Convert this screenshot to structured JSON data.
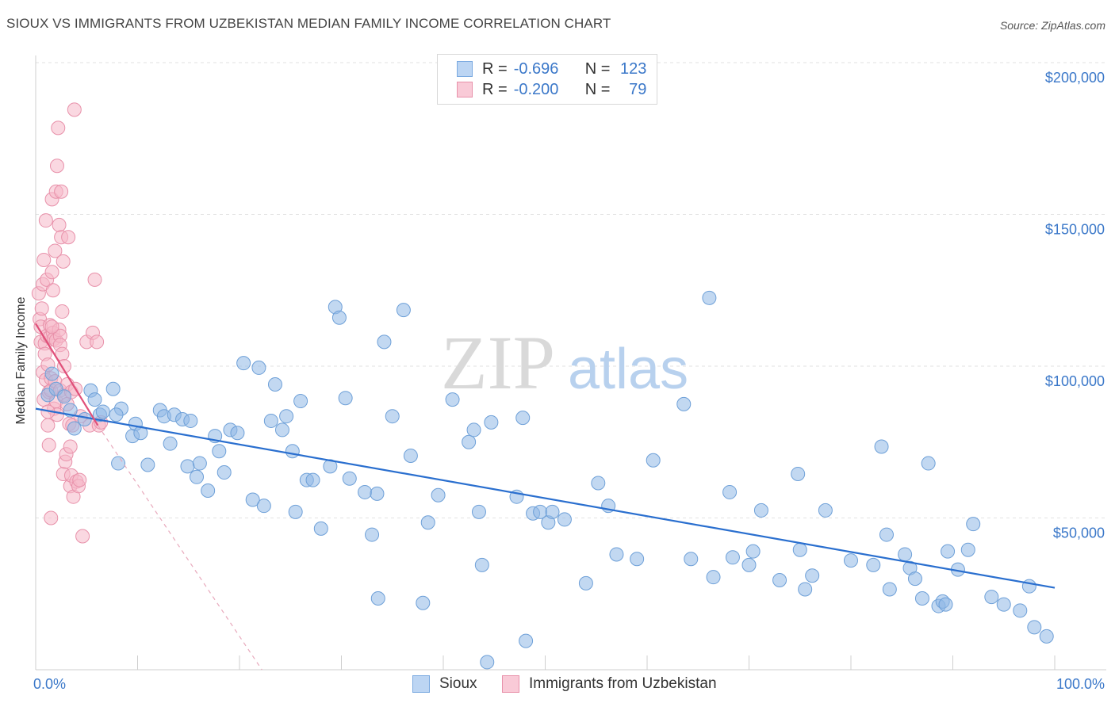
{
  "chart_data": {
    "type": "scatter",
    "title": "SIOUX VS IMMIGRANTS FROM UZBEKISTAN MEDIAN FAMILY INCOME CORRELATION CHART",
    "source": "Source: ZipAtlas.com",
    "watermark": {
      "zip": "ZIP",
      "atlas": "atlas"
    },
    "ylabel": "Median Family Income",
    "xlabel": "",
    "xlim": [
      0,
      100
    ],
    "ylim": [
      0,
      210000
    ],
    "x_tick_labels": {
      "left": "0.0%",
      "right": "100.0%"
    },
    "y_ticks": [
      {
        "value": 200000,
        "label": "$200,000"
      },
      {
        "value": 150000,
        "label": "$150,000"
      },
      {
        "value": 100000,
        "label": "$100,000"
      },
      {
        "value": 50000,
        "label": "$50,000"
      }
    ],
    "legend": {
      "rows": [
        {
          "r_label": "R =",
          "r_value": "-0.696",
          "n_label": "N =",
          "n_value": "123"
        },
        {
          "r_label": "R =",
          "r_value": "-0.200",
          "n_label": "N =",
          "n_value": "79"
        }
      ]
    },
    "series": [
      {
        "name": "Sioux",
        "color": "#8fb8e6",
        "stroke": "#6ea0d8",
        "line_color": "#2a6fcf",
        "trend": {
          "x": [
            0,
            100
          ],
          "y": [
            86000,
            27000
          ]
        },
        "points": [
          [
            1.2,
            90500
          ],
          [
            1.6,
            97500
          ],
          [
            2,
            92500
          ],
          [
            2.8,
            90000
          ],
          [
            3.4,
            85500
          ],
          [
            3.8,
            79500
          ],
          [
            4.8,
            82500
          ],
          [
            5.4,
            92000
          ],
          [
            5.8,
            89000
          ],
          [
            6.3,
            84000
          ],
          [
            6.6,
            85000
          ],
          [
            7.6,
            92500
          ],
          [
            8.1,
            68000
          ],
          [
            8.4,
            86000
          ],
          [
            9.5,
            77000
          ],
          [
            9.8,
            81000
          ],
          [
            10.3,
            78000
          ],
          [
            11,
            67500
          ],
          [
            12.2,
            85500
          ],
          [
            12.6,
            83500
          ],
          [
            13.2,
            74500
          ],
          [
            13.6,
            84000
          ],
          [
            14.4,
            82500
          ],
          [
            14.9,
            67000
          ],
          [
            15.2,
            82000
          ],
          [
            15.8,
            63500
          ],
          [
            16.1,
            68000
          ],
          [
            16.9,
            59000
          ],
          [
            17.6,
            77000
          ],
          [
            18,
            72000
          ],
          [
            18.5,
            65000
          ],
          [
            19.1,
            79000
          ],
          [
            19.8,
            78000
          ],
          [
            20.4,
            101000
          ],
          [
            21.3,
            56000
          ],
          [
            21.9,
            99500
          ],
          [
            22.4,
            54000
          ],
          [
            23.1,
            82000
          ],
          [
            23.5,
            94000
          ],
          [
            24.2,
            79000
          ],
          [
            24.6,
            83500
          ],
          [
            25.2,
            72000
          ],
          [
            25.5,
            52000
          ],
          [
            26,
            88500
          ],
          [
            26.6,
            62500
          ],
          [
            27.2,
            62500
          ],
          [
            28,
            46500
          ],
          [
            28.9,
            67000
          ],
          [
            29.4,
            119500
          ],
          [
            29.8,
            116000
          ],
          [
            30.4,
            89500
          ],
          [
            30.8,
            63000
          ],
          [
            32.3,
            58500
          ],
          [
            33,
            44500
          ],
          [
            33.5,
            58000
          ],
          [
            33.6,
            23500
          ],
          [
            34.2,
            108000
          ],
          [
            35,
            83500
          ],
          [
            36.1,
            118500
          ],
          [
            36.8,
            70500
          ],
          [
            38,
            22000
          ],
          [
            38.5,
            48500
          ],
          [
            39.5,
            57500
          ],
          [
            40.9,
            89000
          ],
          [
            42.5,
            75000
          ],
          [
            43,
            79000
          ],
          [
            43.5,
            52000
          ],
          [
            43.8,
            34500
          ],
          [
            44.3,
            2500
          ],
          [
            44.7,
            81500
          ],
          [
            47.2,
            57000
          ],
          [
            47.8,
            83000
          ],
          [
            48.1,
            9500
          ],
          [
            48.8,
            51500
          ],
          [
            49.5,
            52000
          ],
          [
            50.3,
            48500
          ],
          [
            50.7,
            52000
          ],
          [
            51.9,
            49500
          ],
          [
            54,
            28500
          ],
          [
            55.2,
            61500
          ],
          [
            56.2,
            54000
          ],
          [
            57,
            38000
          ],
          [
            59,
            36500
          ],
          [
            60.6,
            69000
          ],
          [
            63.6,
            87500
          ],
          [
            64.3,
            36500
          ],
          [
            66.1,
            122500
          ],
          [
            66.5,
            30500
          ],
          [
            68.1,
            58500
          ],
          [
            68.4,
            37000
          ],
          [
            70,
            34500
          ],
          [
            70.4,
            39000
          ],
          [
            71.2,
            52500
          ],
          [
            73,
            29500
          ],
          [
            74.8,
            64500
          ],
          [
            75,
            39500
          ],
          [
            75.5,
            26500
          ],
          [
            76.2,
            31000
          ],
          [
            77.5,
            52500
          ],
          [
            80,
            36000
          ],
          [
            82.2,
            34500
          ],
          [
            83,
            73500
          ],
          [
            83.5,
            44500
          ],
          [
            83.8,
            26500
          ],
          [
            85.3,
            38000
          ],
          [
            85.8,
            33500
          ],
          [
            86.3,
            30000
          ],
          [
            87,
            23500
          ],
          [
            87.6,
            68000
          ],
          [
            88.6,
            21000
          ],
          [
            89,
            22500
          ],
          [
            89.3,
            21500
          ],
          [
            89.5,
            39000
          ],
          [
            90.5,
            33000
          ],
          [
            91.5,
            39500
          ],
          [
            92,
            48000
          ],
          [
            93.8,
            24000
          ],
          [
            95,
            21500
          ],
          [
            96.6,
            19500
          ],
          [
            97.5,
            27500
          ],
          [
            98,
            14000
          ],
          [
            99.2,
            11000
          ],
          [
            7.9,
            84000
          ]
        ]
      },
      {
        "name": "Immigrants from Uzbekistan",
        "color": "#f5b8c8",
        "stroke": "#e891aa",
        "line_color": "#e0507a",
        "trend": {
          "x": [
            0,
            6.1
          ],
          "y": [
            114000,
            80500
          ]
        },
        "trend_ext": {
          "x": [
            6.1,
            22.2
          ],
          "y": [
            80500,
            0
          ]
        },
        "points": [
          [
            0.3,
            124000
          ],
          [
            0.4,
            115500
          ],
          [
            0.5,
            108000
          ],
          [
            0.5,
            113000
          ],
          [
            0.6,
            119000
          ],
          [
            0.7,
            127000
          ],
          [
            0.7,
            98000
          ],
          [
            0.8,
            135000
          ],
          [
            0.8,
            89000
          ],
          [
            0.9,
            107500
          ],
          [
            0.9,
            104000
          ],
          [
            1,
            95500
          ],
          [
            1,
            148000
          ],
          [
            1.1,
            110000
          ],
          [
            1.1,
            128500
          ],
          [
            1.2,
            100500
          ],
          [
            1.2,
            80500
          ],
          [
            1.3,
            91500
          ],
          [
            1.3,
            74000
          ],
          [
            1.4,
            109500
          ],
          [
            1.4,
            113500
          ],
          [
            1.5,
            96000
          ],
          [
            1.5,
            92000
          ],
          [
            1.6,
            155000
          ],
          [
            1.6,
            131000
          ],
          [
            1.7,
            125000
          ],
          [
            1.7,
            111000
          ],
          [
            1.8,
            109000
          ],
          [
            1.8,
            86000
          ],
          [
            1.9,
            138000
          ],
          [
            1.9,
            95000
          ],
          [
            2,
            157500
          ],
          [
            2,
            108500
          ],
          [
            2,
            88500
          ],
          [
            2.1,
            166000
          ],
          [
            2.1,
            84000
          ],
          [
            2.2,
            178500
          ],
          [
            2.3,
            146500
          ],
          [
            2.3,
            112000
          ],
          [
            2.4,
            110000
          ],
          [
            2.4,
            107000
          ],
          [
            2.4,
            92000
          ],
          [
            2.5,
            157500
          ],
          [
            2.5,
            142500
          ],
          [
            2.6,
            118000
          ],
          [
            2.6,
            104000
          ],
          [
            2.7,
            134500
          ],
          [
            2.7,
            64500
          ],
          [
            2.8,
            100000
          ],
          [
            2.8,
            90500
          ],
          [
            2.9,
            68500
          ],
          [
            3,
            71000
          ],
          [
            3.1,
            94000
          ],
          [
            3.1,
            87500
          ],
          [
            3.2,
            142500
          ],
          [
            3.3,
            81000
          ],
          [
            3.4,
            73500
          ],
          [
            3.4,
            60500
          ],
          [
            3.5,
            91500
          ],
          [
            3.5,
            64000
          ],
          [
            3.6,
            80500
          ],
          [
            3.7,
            57000
          ],
          [
            3.8,
            184500
          ],
          [
            3.9,
            92500
          ],
          [
            4,
            62000
          ],
          [
            4.2,
            60500
          ],
          [
            4.3,
            62500
          ],
          [
            4.4,
            83500
          ],
          [
            4.6,
            44000
          ],
          [
            5,
            108000
          ],
          [
            5.3,
            80500
          ],
          [
            5.6,
            111000
          ],
          [
            5.8,
            128500
          ],
          [
            6,
            108000
          ],
          [
            6.2,
            80500
          ],
          [
            6.4,
            81500
          ],
          [
            1.2,
            85000
          ],
          [
            1.5,
            50000
          ],
          [
            1.6,
            113000
          ]
        ]
      }
    ]
  }
}
